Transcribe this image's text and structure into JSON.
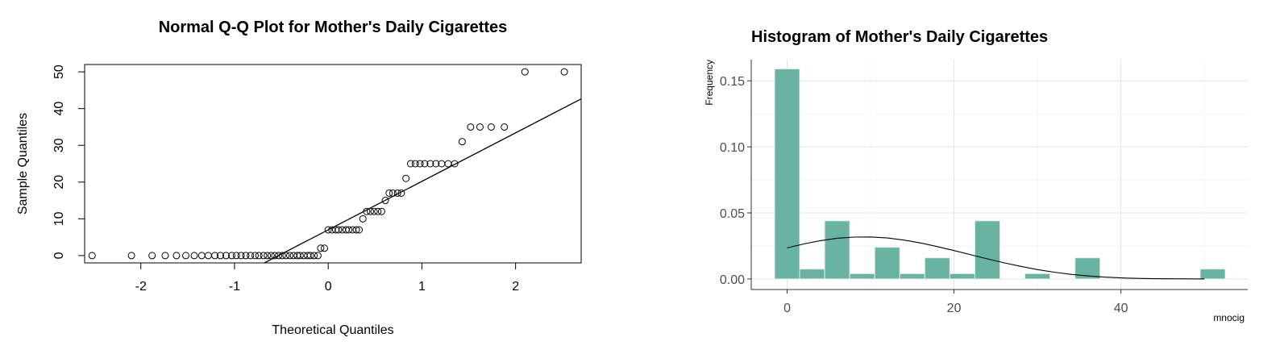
{
  "chart_data": [
    {
      "type": "scatter",
      "title": "Normal Q-Q Plot for Mother's Daily Cigarettes",
      "xlabel": "Theoretical Quantiles",
      "ylabel": "Sample Quantiles",
      "xlim": [
        -2.6,
        2.7
      ],
      "ylim": [
        -2,
        52
      ],
      "xticks": [
        "-2",
        "-1",
        "0",
        "1",
        "2"
      ],
      "yticks": [
        "0",
        "10",
        "20",
        "30",
        "40",
        "50"
      ],
      "grid": false,
      "reference_line": {
        "intercept": 7.0,
        "slope": 13.2
      },
      "points": [
        {
          "x": -2.52,
          "y": 0
        },
        {
          "x": -2.1,
          "y": 0
        },
        {
          "x": -1.88,
          "y": 0
        },
        {
          "x": -1.74,
          "y": 0
        },
        {
          "x": -1.62,
          "y": 0
        },
        {
          "x": -1.52,
          "y": 0
        },
        {
          "x": -1.43,
          "y": 0
        },
        {
          "x": -1.35,
          "y": 0
        },
        {
          "x": -1.28,
          "y": 0
        },
        {
          "x": -1.21,
          "y": 0
        },
        {
          "x": -1.15,
          "y": 0
        },
        {
          "x": -1.09,
          "y": 0
        },
        {
          "x": -1.03,
          "y": 0
        },
        {
          "x": -0.98,
          "y": 0
        },
        {
          "x": -0.93,
          "y": 0
        },
        {
          "x": -0.88,
          "y": 0
        },
        {
          "x": -0.83,
          "y": 0
        },
        {
          "x": -0.78,
          "y": 0
        },
        {
          "x": -0.74,
          "y": 0
        },
        {
          "x": -0.69,
          "y": 0
        },
        {
          "x": -0.65,
          "y": 0
        },
        {
          "x": -0.61,
          "y": 0
        },
        {
          "x": -0.57,
          "y": 0
        },
        {
          "x": -0.53,
          "y": 0
        },
        {
          "x": -0.49,
          "y": 0
        },
        {
          "x": -0.45,
          "y": 0
        },
        {
          "x": -0.41,
          "y": 0
        },
        {
          "x": -0.37,
          "y": 0
        },
        {
          "x": -0.33,
          "y": 0
        },
        {
          "x": -0.3,
          "y": 0
        },
        {
          "x": -0.26,
          "y": 0
        },
        {
          "x": -0.22,
          "y": 0
        },
        {
          "x": -0.19,
          "y": 0
        },
        {
          "x": -0.15,
          "y": 0
        },
        {
          "x": -0.11,
          "y": 0
        },
        {
          "x": -0.08,
          "y": 2
        },
        {
          "x": -0.04,
          "y": 2
        },
        {
          "x": 0.0,
          "y": 7
        },
        {
          "x": 0.04,
          "y": 7
        },
        {
          "x": 0.08,
          "y": 7
        },
        {
          "x": 0.11,
          "y": 7
        },
        {
          "x": 0.15,
          "y": 7
        },
        {
          "x": 0.19,
          "y": 7
        },
        {
          "x": 0.22,
          "y": 7
        },
        {
          "x": 0.26,
          "y": 7
        },
        {
          "x": 0.3,
          "y": 7
        },
        {
          "x": 0.33,
          "y": 7
        },
        {
          "x": 0.37,
          "y": 10
        },
        {
          "x": 0.41,
          "y": 12
        },
        {
          "x": 0.45,
          "y": 12
        },
        {
          "x": 0.49,
          "y": 12
        },
        {
          "x": 0.53,
          "y": 12
        },
        {
          "x": 0.57,
          "y": 12
        },
        {
          "x": 0.61,
          "y": 15
        },
        {
          "x": 0.65,
          "y": 17
        },
        {
          "x": 0.69,
          "y": 17
        },
        {
          "x": 0.74,
          "y": 17
        },
        {
          "x": 0.78,
          "y": 17
        },
        {
          "x": 0.83,
          "y": 21
        },
        {
          "x": 0.88,
          "y": 25
        },
        {
          "x": 0.93,
          "y": 25
        },
        {
          "x": 0.98,
          "y": 25
        },
        {
          "x": 1.03,
          "y": 25
        },
        {
          "x": 1.09,
          "y": 25
        },
        {
          "x": 1.15,
          "y": 25
        },
        {
          "x": 1.21,
          "y": 25
        },
        {
          "x": 1.28,
          "y": 25
        },
        {
          "x": 1.35,
          "y": 25
        },
        {
          "x": 1.43,
          "y": 31
        },
        {
          "x": 1.52,
          "y": 35
        },
        {
          "x": 1.62,
          "y": 35
        },
        {
          "x": 1.74,
          "y": 35
        },
        {
          "x": 1.88,
          "y": 35
        },
        {
          "x": 2.1,
          "y": 50
        },
        {
          "x": 2.52,
          "y": 50
        }
      ]
    },
    {
      "type": "bar",
      "title": "Histogram of Mother's Daily Cigarettes",
      "xlabel": "mnocig",
      "ylabel": "Frequency",
      "xlim": [
        -4.3,
        55.2
      ],
      "ylim": [
        -0.008,
        0.166
      ],
      "xticks": [
        "0",
        "20",
        "40"
      ],
      "yticks": [
        "0.00",
        "0.05",
        "0.10",
        "0.15"
      ],
      "grid": true,
      "bar_color": "#69b3a2",
      "bars": [
        {
          "x0": -1.5,
          "x1": 1.5,
          "value": 0.159
        },
        {
          "x0": 1.5,
          "x1": 4.5,
          "value": 0.0075
        },
        {
          "x0": 4.5,
          "x1": 7.5,
          "value": 0.044
        },
        {
          "x0": 7.5,
          "x1": 10.5,
          "value": 0.004
        },
        {
          "x0": 10.5,
          "x1": 13.5,
          "value": 0.024
        },
        {
          "x0": 13.5,
          "x1": 16.5,
          "value": 0.004
        },
        {
          "x0": 16.5,
          "x1": 19.5,
          "value": 0.016
        },
        {
          "x0": 19.5,
          "x1": 22.5,
          "value": 0.004
        },
        {
          "x0": 22.5,
          "x1": 25.5,
          "value": 0.044
        },
        {
          "x0": 28.5,
          "x1": 31.5,
          "value": 0.004
        },
        {
          "x0": 34.5,
          "x1": 37.5,
          "value": 0.016
        },
        {
          "x0": 49.5,
          "x1": 52.5,
          "value": 0.0075
        }
      ],
      "density_curve": {
        "x": [
          0,
          2,
          4,
          6,
          8,
          10,
          12,
          14,
          16,
          18,
          20,
          22,
          24,
          26,
          28,
          30,
          32,
          34,
          36,
          38,
          40,
          42,
          44,
          46,
          48,
          50
        ],
        "y": [
          0.0235,
          0.0265,
          0.029,
          0.0308,
          0.0317,
          0.0318,
          0.031,
          0.0294,
          0.0272,
          0.0245,
          0.0215,
          0.0183,
          0.0152,
          0.0122,
          0.0095,
          0.0071,
          0.0051,
          0.0035,
          0.0023,
          0.0014,
          0.0008,
          0.0004,
          0.0002,
          0.0001,
          5e-05,
          2e-05
        ]
      }
    }
  ]
}
